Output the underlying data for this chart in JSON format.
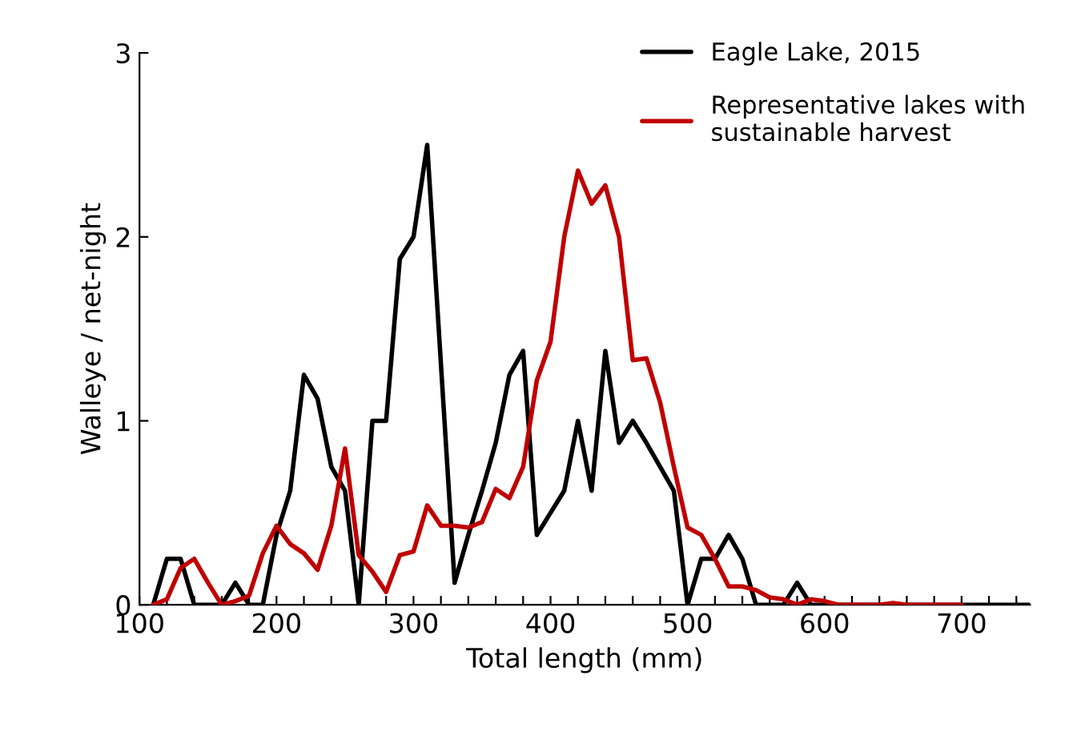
{
  "chart_data": {
    "type": "line",
    "xlabel": "Total length (mm)",
    "ylabel": "Walleye / net-night",
    "xlim": [
      100,
      750
    ],
    "ylim": [
      0,
      3
    ],
    "xticks": [
      100,
      {
        "value": 120,
        "label": null
      },
      {
        "value": 140,
        "label": null
      },
      {
        "value": 160,
        "label": null
      },
      {
        "value": 180,
        "label": null
      },
      200,
      {
        "value": 220,
        "label": null
      },
      {
        "value": 240,
        "label": null
      },
      {
        "value": 260,
        "label": null
      },
      {
        "value": 280,
        "label": null
      },
      300,
      {
        "value": 320,
        "label": null
      },
      {
        "value": 340,
        "label": null
      },
      {
        "value": 360,
        "label": null
      },
      {
        "value": 380,
        "label": null
      },
      400,
      {
        "value": 420,
        "label": null
      },
      {
        "value": 440,
        "label": null
      },
      {
        "value": 460,
        "label": null
      },
      {
        "value": 480,
        "label": null
      },
      500,
      {
        "value": 520,
        "label": null
      },
      {
        "value": 540,
        "label": null
      },
      {
        "value": 560,
        "label": null
      },
      {
        "value": 580,
        "label": null
      },
      600,
      {
        "value": 620,
        "label": null
      },
      {
        "value": 640,
        "label": null
      },
      {
        "value": 660,
        "label": null
      },
      {
        "value": 680,
        "label": null
      },
      700,
      {
        "value": 720,
        "label": null
      },
      {
        "value": 740,
        "label": null
      }
    ],
    "yticks": [
      0,
      1,
      2,
      3
    ],
    "grid": false,
    "legend": "top right",
    "marker": "none",
    "line_style": "solid",
    "series": [
      {
        "name": "Eagle Lake, 2015",
        "color": "#000000",
        "x": [
          110,
          120,
          130,
          140,
          150,
          160,
          170,
          180,
          190,
          200,
          210,
          220,
          230,
          240,
          250,
          260,
          270,
          280,
          290,
          300,
          310,
          330,
          340,
          350,
          360,
          370,
          380,
          390,
          400,
          410,
          420,
          430,
          440,
          450,
          460,
          470,
          480,
          490,
          500,
          510,
          520,
          530,
          540,
          550,
          560,
          570,
          580,
          590,
          600,
          650,
          700,
          750
        ],
        "values": [
          0,
          0.25,
          0.25,
          0,
          0,
          0,
          0.12,
          0,
          0,
          0.38,
          0.62,
          1.25,
          1.12,
          0.75,
          0.62,
          0,
          1.0,
          1.0,
          1.88,
          2.0,
          2.5,
          0.12,
          0.38,
          0.62,
          0.88,
          1.25,
          1.38,
          0.38,
          0.5,
          0.62,
          1.0,
          0.62,
          1.38,
          0.88,
          1.0,
          0.88,
          0.75,
          0.62,
          0,
          0.25,
          0.25,
          0.38,
          0.25,
          0,
          0,
          0,
          0.12,
          0,
          0,
          0,
          0,
          0
        ]
      },
      {
        "name": "Representative lakes with\nsustainable harvest",
        "color": "#c00000",
        "x": [
          110,
          120,
          130,
          140,
          150,
          160,
          170,
          180,
          190,
          200,
          210,
          220,
          230,
          240,
          250,
          260,
          270,
          280,
          290,
          300,
          310,
          320,
          330,
          340,
          350,
          360,
          370,
          380,
          390,
          400,
          410,
          420,
          430,
          440,
          450,
          460,
          470,
          480,
          490,
          500,
          510,
          520,
          530,
          540,
          550,
          560,
          570,
          580,
          590,
          600,
          610,
          640,
          650,
          660,
          700
        ],
        "values": [
          0,
          0.03,
          0.2,
          0.25,
          0.12,
          0,
          0.02,
          0.05,
          0.28,
          0.43,
          0.33,
          0.28,
          0.19,
          0.43,
          0.85,
          0.27,
          0.18,
          0.07,
          0.27,
          0.29,
          0.54,
          0.43,
          0.43,
          0.42,
          0.45,
          0.63,
          0.58,
          0.75,
          1.22,
          1.43,
          2.0,
          2.36,
          2.18,
          2.28,
          2.0,
          1.33,
          1.34,
          1.1,
          0.75,
          0.42,
          0.38,
          0.25,
          0.1,
          0.1,
          0.08,
          0.04,
          0.03,
          0,
          0.03,
          0.02,
          0,
          0,
          0.01,
          0,
          0
        ]
      }
    ]
  }
}
